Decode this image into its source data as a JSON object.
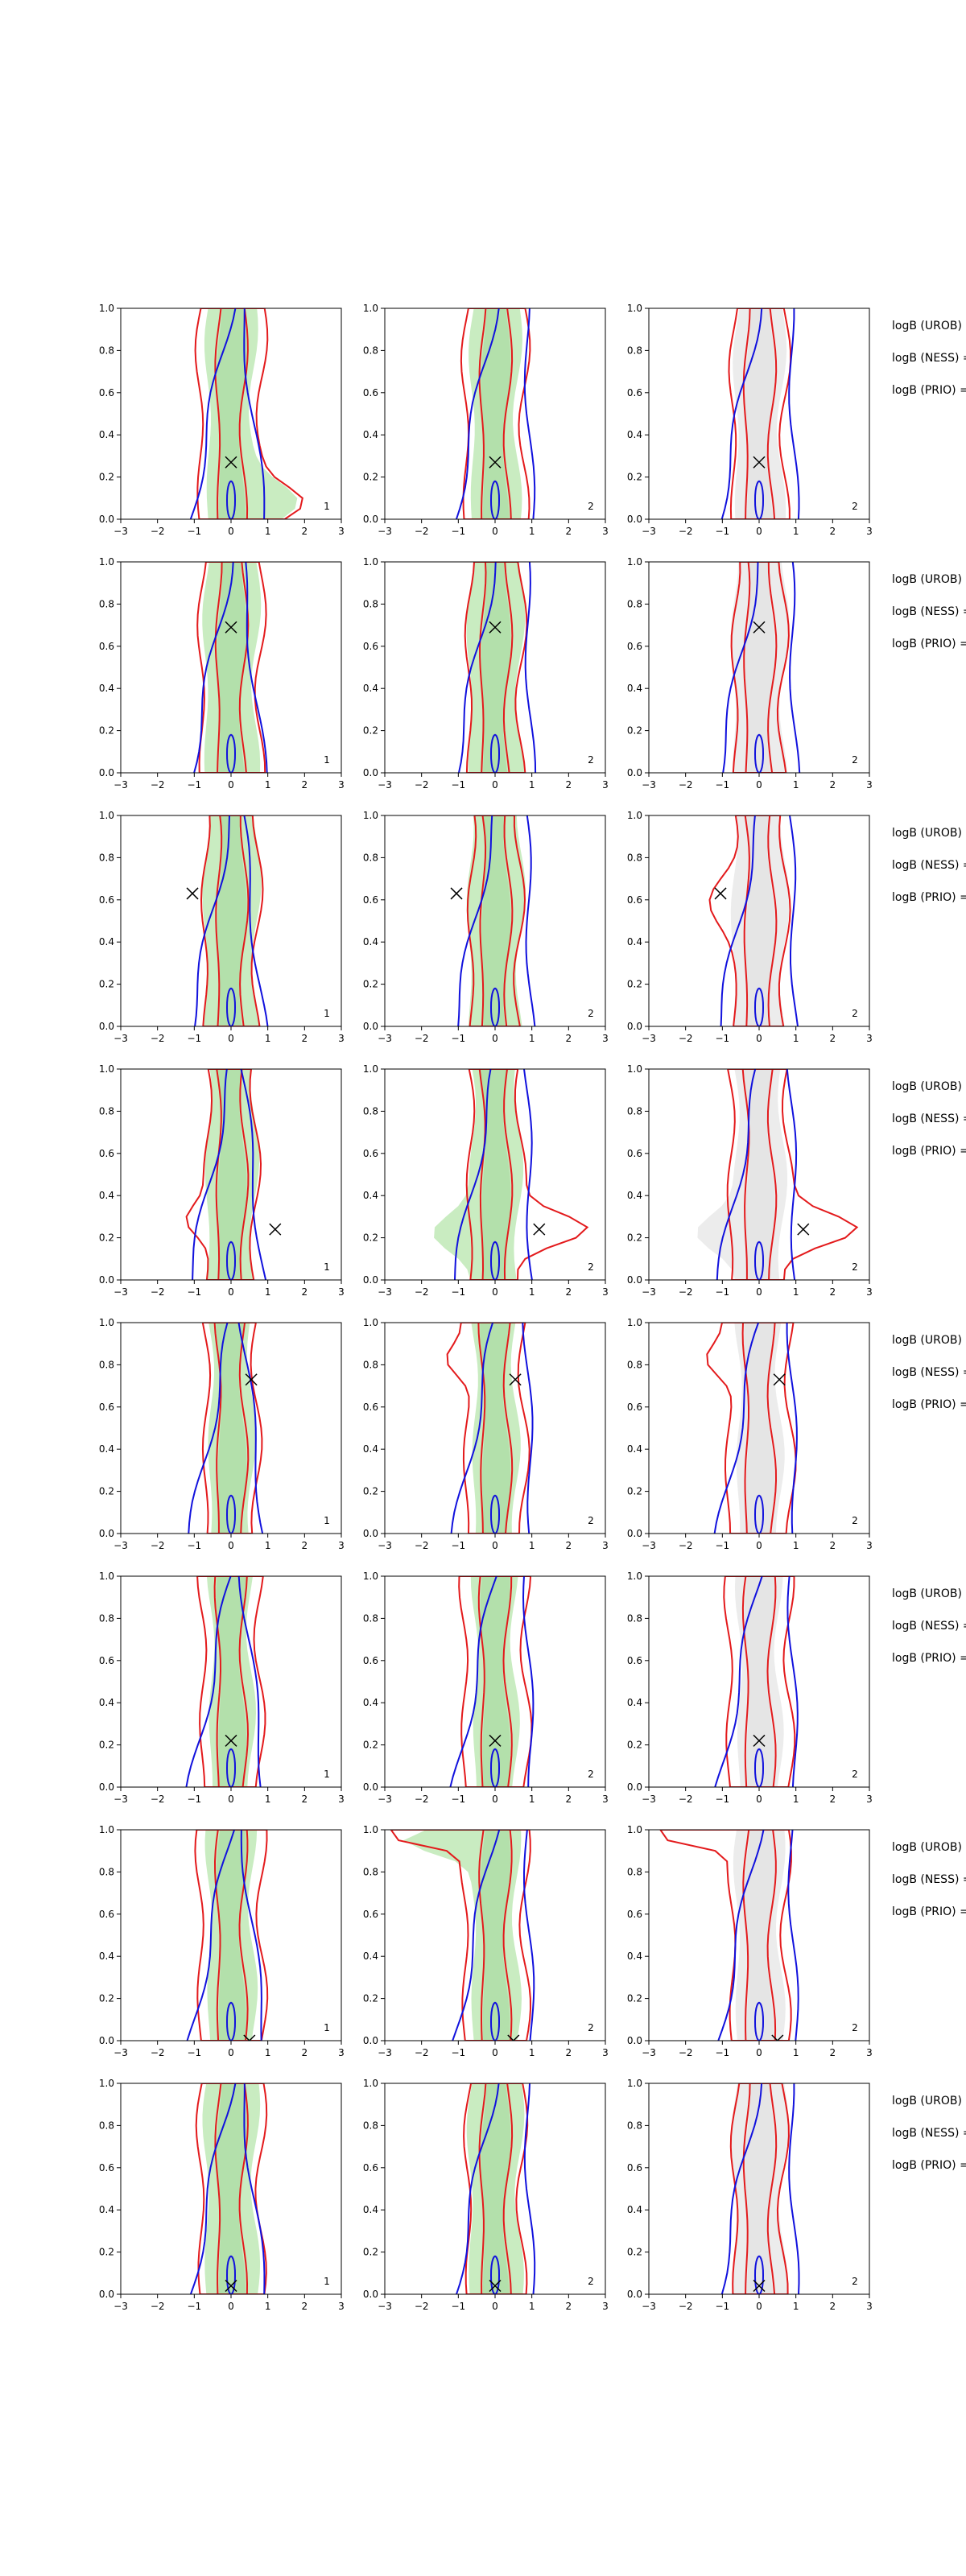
{
  "chart_data": {
    "type": "contour",
    "grid": false,
    "layout": {
      "rows": 8,
      "cols": 3
    },
    "xlim": [
      -3,
      3
    ],
    "ylim": [
      0,
      1
    ],
    "xticks": [
      "−3",
      "−2",
      "−1",
      "0",
      "1",
      "2",
      "3"
    ],
    "yticks": [
      "0.0",
      "0.2",
      "0.4",
      "0.6",
      "0.8",
      "1.0"
    ],
    "colors": {
      "fill": "#c9ecc1",
      "fill_dark": "#a9dba1",
      "fill_gray": "#ececec",
      "red": "#e31a1c",
      "blue": "#1111dd",
      "marker": "#000000"
    },
    "panel_corner_labels": [
      "1",
      "2",
      "2"
    ],
    "side_labels": [
      "logB (UROB) =",
      "logB (NESS) =",
      "logB (PRIO) ="
    ],
    "markers": [
      {
        "x": 0.0,
        "y": 0.27
      },
      {
        "x": 0.0,
        "y": 0.69
      },
      {
        "x": -1.05,
        "y": 0.63
      },
      {
        "x": 1.2,
        "y": 0.24
      },
      {
        "x": 0.55,
        "y": 0.73
      },
      {
        "x": 0.0,
        "y": 0.22
      },
      {
        "x": 0.5,
        "y": 0.0
      },
      {
        "x": 0.0,
        "y": 0.04
      }
    ]
  }
}
